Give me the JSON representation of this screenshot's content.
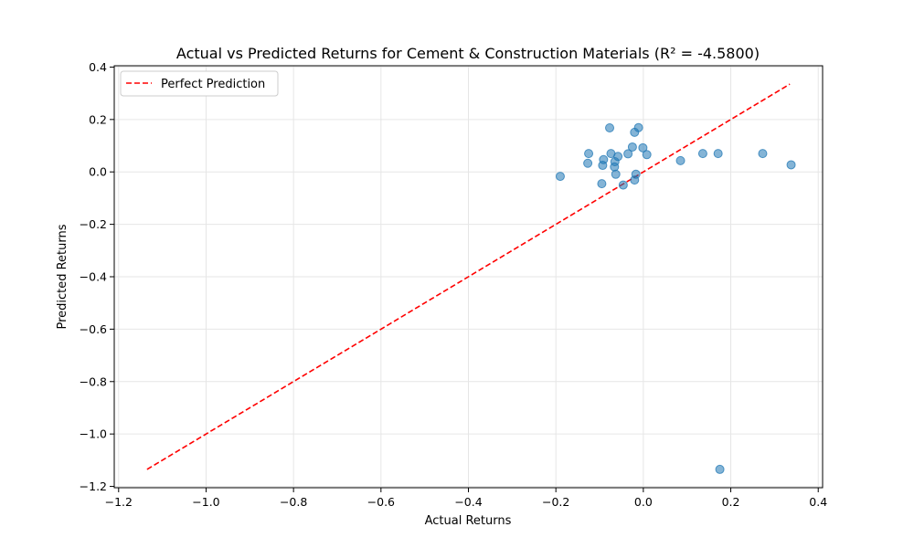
{
  "chart_data": {
    "type": "scatter",
    "title": "Actual vs Predicted Returns for Cement & Construction Materials (R² = -4.5800)",
    "xlabel": "Actual Returns",
    "ylabel": "Predicted Returns",
    "xlim": [
      -1.21,
      0.41
    ],
    "ylim": [
      -1.205,
      0.405
    ],
    "xticks": [
      -1.2,
      -1.0,
      -0.8,
      -0.6,
      -0.4,
      -0.2,
      0.0,
      0.2,
      0.4
    ],
    "yticks": [
      -1.2,
      -1.0,
      -0.8,
      -0.6,
      -0.4,
      -0.2,
      0.0,
      0.2,
      0.4
    ],
    "xtick_labels": [
      "−1.2",
      "−1.0",
      "−0.8",
      "−0.6",
      "−0.4",
      "−0.2",
      "0.0",
      "0.2",
      "0.4"
    ],
    "ytick_labels": [
      "−1.2",
      "−1.0",
      "−0.8",
      "−0.6",
      "−0.4",
      "−0.2",
      "0.0",
      "0.2",
      "0.4"
    ],
    "grid": true,
    "legend": {
      "position": "top-left",
      "entries": [
        "Perfect Prediction"
      ]
    },
    "line": {
      "name": "Perfect Prediction",
      "x": [
        -1.135,
        0.335
      ],
      "y": [
        -1.135,
        0.335
      ],
      "color": "#ff0000",
      "style": "dashed"
    },
    "series": [
      {
        "color": "#1f77b4",
        "points": [
          [
            -0.19,
            -0.017
          ],
          [
            -0.125,
            0.07
          ],
          [
            -0.127,
            0.033
          ],
          [
            -0.091,
            0.047
          ],
          [
            -0.093,
            0.025
          ],
          [
            -0.095,
            -0.045
          ],
          [
            -0.077,
            0.168
          ],
          [
            -0.074,
            0.07
          ],
          [
            -0.065,
            0.039
          ],
          [
            -0.066,
            0.019
          ],
          [
            -0.063,
            -0.009
          ],
          [
            -0.058,
            0.059
          ],
          [
            -0.046,
            -0.05
          ],
          [
            -0.035,
            0.069
          ],
          [
            -0.025,
            0.095
          ],
          [
            -0.02,
            0.151
          ],
          [
            -0.011,
            0.169
          ],
          [
            -0.017,
            -0.009
          ],
          [
            -0.02,
            -0.031
          ],
          [
            -0.001,
            0.092
          ],
          [
            0.008,
            0.066
          ],
          [
            0.085,
            0.043
          ],
          [
            0.136,
            0.07
          ],
          [
            0.171,
            0.07
          ],
          [
            0.273,
            0.07
          ],
          [
            0.338,
            0.027
          ],
          [
            0.175,
            -1.135
          ]
        ]
      }
    ]
  }
}
